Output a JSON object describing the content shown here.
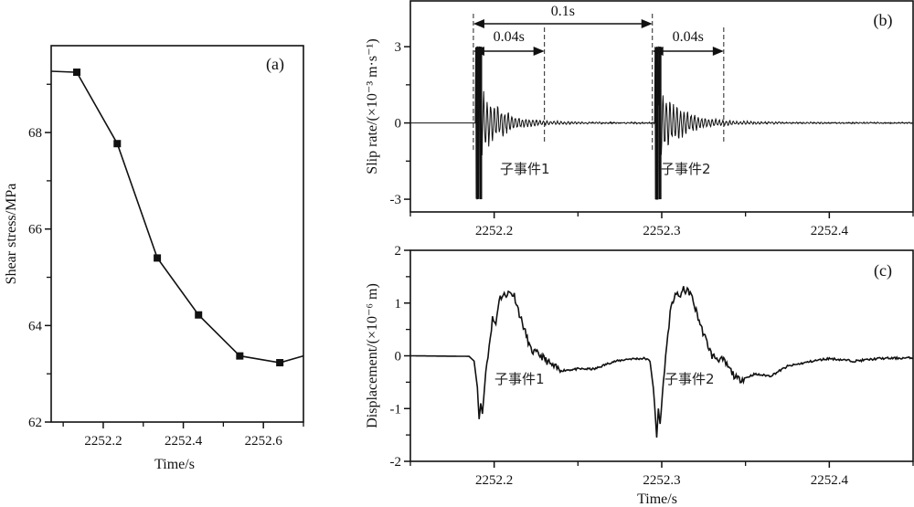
{
  "chart_data": [
    {
      "id": "a",
      "type": "line",
      "panel_label": "(a)",
      "xlabel": "Time/s",
      "ylabel": "Shear stress/MPa",
      "xlim": [
        2252.07,
        2252.7
      ],
      "ylim": [
        62,
        69.8
      ],
      "xticks": [
        2252.2,
        2252.4,
        2252.6
      ],
      "xtick_labels": [
        "2252.2",
        "2252.4",
        "2252.6"
      ],
      "yticks": [
        62,
        64,
        66,
        68
      ],
      "ytick_labels": [
        "62",
        "64",
        "66",
        "68"
      ],
      "marker": "square",
      "x": [
        2252.07,
        2252.134,
        2252.235,
        2252.335,
        2252.438,
        2252.541,
        2252.641,
        2252.7
      ],
      "y": [
        69.27,
        69.25,
        67.77,
        65.4,
        64.22,
        63.37,
        63.23,
        63.37
      ],
      "markers_at": [
        1,
        2,
        3,
        4,
        5,
        6
      ]
    },
    {
      "id": "b",
      "type": "line",
      "panel_label": "(b)",
      "ylabel": "Slip rate/(×10⁻³ m·s⁻¹)",
      "xlim": [
        2252.15,
        2252.45
      ],
      "ylim": [
        -3.5,
        4.8
      ],
      "xticks": [
        2252.2,
        2252.3,
        2252.4
      ],
      "xtick_labels": [
        "2252.2",
        "2252.3",
        "2252.4"
      ],
      "yticks": [
        -3,
        0,
        3
      ],
      "ytick_labels": [
        "-3",
        "0",
        "3"
      ],
      "events": [
        {
          "onset": 2252.189,
          "saturated_amplitude": 3.0,
          "oscillation_amplitude": 1.3,
          "decay_time": 0.012,
          "period": 0.0021,
          "label": "子事件1"
        },
        {
          "onset": 2252.296,
          "saturated_amplitude": 3.0,
          "oscillation_amplitude": 1.4,
          "decay_time": 0.012,
          "period": 0.0021,
          "label": "子事件2"
        }
      ],
      "annotations": {
        "interval_label": "0.1s",
        "duration_label_1": "0.04s",
        "duration_label_2": "0.04s",
        "dashed_lines": [
          2252.1876,
          2252.23,
          2252.2944,
          2252.337
        ]
      }
    },
    {
      "id": "c",
      "type": "line",
      "panel_label": "(c)",
      "xlabel": "Time/s",
      "ylabel": "Displacement/(×10⁻⁶ m)",
      "xlim": [
        2252.15,
        2252.45
      ],
      "ylim": [
        -2,
        2
      ],
      "xticks": [
        2252.2,
        2252.3,
        2252.4
      ],
      "xtick_labels": [
        "2252.2",
        "2252.3",
        "2252.4"
      ],
      "yticks": [
        -2,
        -1,
        0,
        1,
        2
      ],
      "ytick_labels": [
        "-2",
        "-1",
        "0",
        "1",
        "2"
      ],
      "x": [
        2252.15,
        2252.185,
        2252.188,
        2252.19,
        2252.191,
        2252.192,
        2252.193,
        2252.195,
        2252.197,
        2252.199,
        2252.201,
        2252.203,
        2252.206,
        2252.209,
        2252.212,
        2252.215,
        2252.218,
        2252.222,
        2252.228,
        2252.235,
        2252.24,
        2252.25,
        2252.26,
        2252.27,
        2252.28,
        2252.29,
        2252.293,
        2252.295,
        2252.297,
        2252.298,
        2252.299,
        2252.301,
        2252.303,
        2252.305,
        2252.308,
        2252.31,
        2252.313,
        2252.317,
        2252.32,
        2252.324,
        2252.33,
        2252.337,
        2252.345,
        2252.35,
        2252.355,
        2252.365,
        2252.375,
        2252.39,
        2252.4,
        2252.415,
        2252.43,
        2252.45
      ],
      "y": [
        0,
        -0.01,
        -0.1,
        -0.6,
        -1.2,
        -0.9,
        -1.1,
        -0.3,
        0.2,
        0.7,
        0.6,
        1.1,
        1.15,
        1.2,
        1.15,
        0.8,
        0.5,
        0.1,
        0.0,
        -0.2,
        -0.28,
        -0.25,
        -0.25,
        -0.12,
        -0.06,
        -0.05,
        -0.1,
        -0.6,
        -1.55,
        -1.0,
        -1.3,
        -0.5,
        0.2,
        0.8,
        1.2,
        1.1,
        1.25,
        1.2,
        0.9,
        0.5,
        0.0,
        -0.1,
        -0.45,
        -0.42,
        -0.35,
        -0.38,
        -0.2,
        -0.1,
        -0.05,
        -0.1,
        -0.05,
        -0.04
      ],
      "event_labels": [
        "子事件1",
        "子事件2"
      ]
    }
  ]
}
